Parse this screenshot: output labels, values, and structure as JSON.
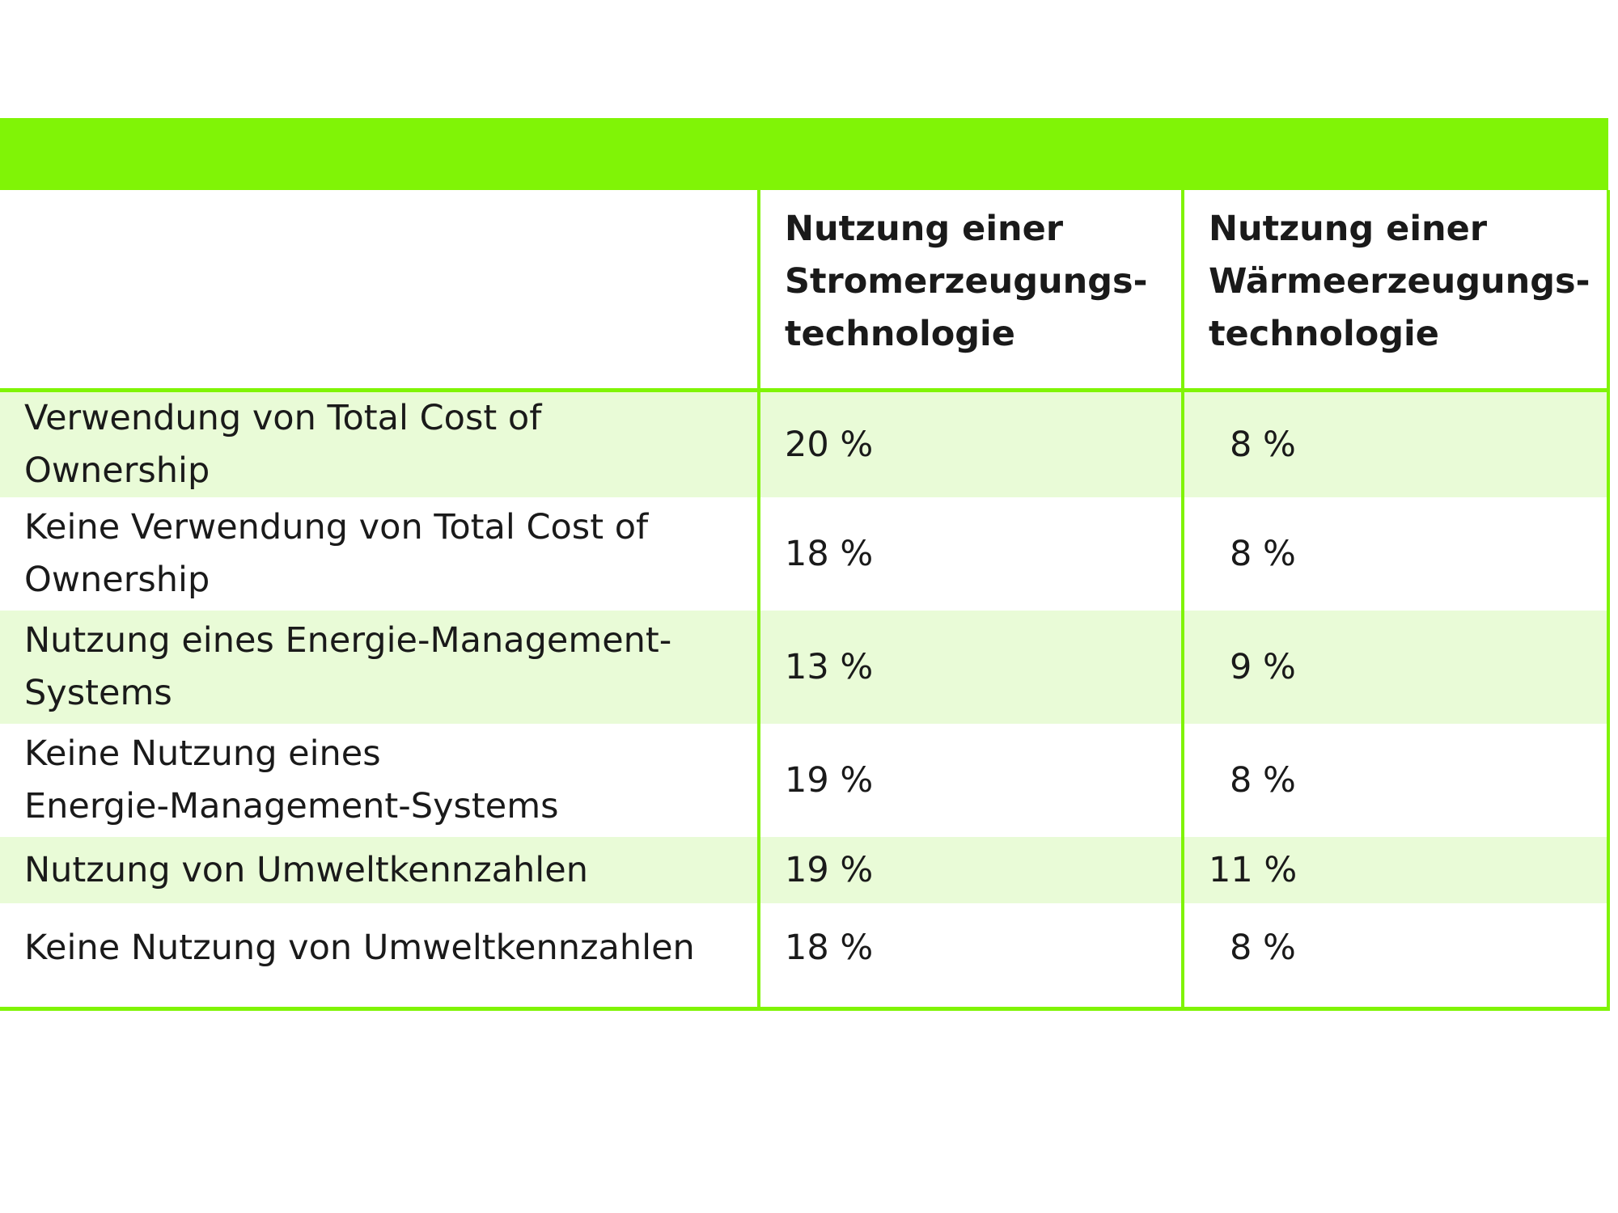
{
  "table": {
    "headers": [
      "",
      "Nutzung einer\nStromerzeugungs-\ntechnologie",
      "Nutzung einer\nWärmeerzeugungs-\ntechnologie"
    ],
    "rows": [
      {
        "label": "Verwendung von Total Cost of Ownership",
        "strom": "20 %",
        "waerme": "8 %"
      },
      {
        "label": "Keine Verwendung von Total Cost of\nOwnership",
        "strom": "18 %",
        "waerme": "8 %"
      },
      {
        "label": "Nutzung eines Energie-Management-\nSystems",
        "strom": "13 %",
        "waerme": "9 %"
      },
      {
        "label": "Keine Nutzung eines\nEnergie-Management-Systems",
        "strom": "19 %",
        "waerme": "8 %"
      },
      {
        "label": "Nutzung von Umweltkennzahlen",
        "strom": "19 %",
        "waerme": "11 %"
      },
      {
        "label": "Keine Nutzung von Umweltkennzahlen",
        "strom": "18 %",
        "waerme": "8 %"
      }
    ]
  },
  "colors": {
    "accent": "#80f406",
    "row_shade": "#e9fbd7"
  }
}
